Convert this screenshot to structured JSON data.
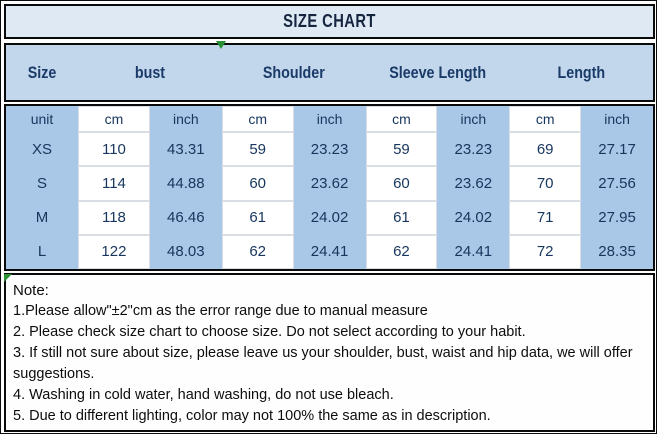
{
  "header": {
    "title": "SIZE CHART"
  },
  "chart_data": {
    "type": "table",
    "title": "SIZE CHART",
    "column_groups": [
      "Size",
      "bust",
      "Shoulder",
      "Sleeve Length",
      "Length"
    ],
    "unit_row": [
      "unit",
      "cm",
      "inch",
      "cm",
      "inch",
      "cm",
      "inch",
      "cm",
      "inch"
    ],
    "rows": [
      [
        "XS",
        "110",
        "43.31",
        "59",
        "23.23",
        "59",
        "23.23",
        "69",
        "27.17"
      ],
      [
        "S",
        "114",
        "44.88",
        "60",
        "23.62",
        "60",
        "23.62",
        "70",
        "27.56"
      ],
      [
        "M",
        "118",
        "46.46",
        "61",
        "24.02",
        "61",
        "24.02",
        "71",
        "27.95"
      ],
      [
        "L",
        "122",
        "48.03",
        "62",
        "24.41",
        "62",
        "24.41",
        "72",
        "28.35"
      ]
    ]
  },
  "notes": {
    "heading": "Note:",
    "lines": [
      "1.Please allow\"±2\"cm as the error range due to manual measure",
      "2. Please check size chart to choose size. Do not select according to your habit.",
      "3. If still not sure about size, please leave us your shoulder, bust, waist and hip data, we will offer",
      "suggestions.",
      "4. Washing in cold water, hand washing, do not use bleach.",
      "5. Due to different lighting, color may not 100% the same as in description."
    ]
  },
  "colors": {
    "title_band": "#dfe9f4",
    "header_band": "#c2d6ec",
    "cell_blue": "#a9c7e6",
    "table_text": "#17365d",
    "marker_green": "#2a9235"
  }
}
